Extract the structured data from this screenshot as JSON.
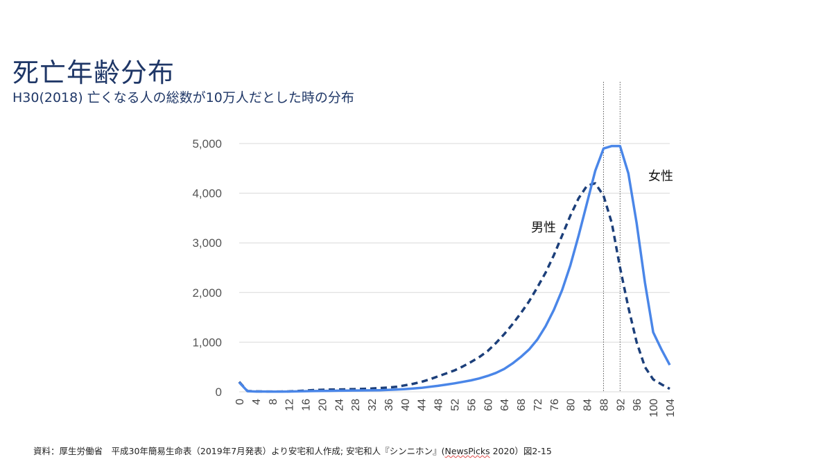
{
  "title": "死亡年齢分布",
  "subtitle": "H30(2018) 亡くなる人の総数が10万人だとした時の分布",
  "footer": {
    "prefix": "資料：厚生労働省　平成30年簡易生命表（2019年7月発表）より安宅和人作成; 安宅和人『シンニホン』(",
    "publisher": "NewsPicks",
    "suffix": " 2020）図2-15"
  },
  "colors": {
    "female": "#4a86e8",
    "male": "#1c3f7a",
    "grid": "#d9d9d9",
    "title": "#1f3767"
  },
  "chart_data": {
    "type": "line",
    "x": [
      0,
      2,
      4,
      6,
      8,
      10,
      12,
      14,
      16,
      18,
      20,
      22,
      24,
      26,
      28,
      30,
      32,
      34,
      36,
      38,
      40,
      42,
      44,
      46,
      48,
      50,
      52,
      54,
      56,
      58,
      60,
      62,
      64,
      66,
      68,
      70,
      72,
      74,
      76,
      78,
      80,
      82,
      84,
      86,
      88,
      90,
      92,
      94,
      96,
      98,
      100,
      102,
      104
    ],
    "x_tick_labels": [
      "0",
      "4",
      "8",
      "12",
      "16",
      "20",
      "24",
      "28",
      "32",
      "36",
      "40",
      "44",
      "48",
      "52",
      "56",
      "60",
      "64",
      "68",
      "72",
      "76",
      "80",
      "84",
      "88",
      "92",
      "96",
      "100",
      "104"
    ],
    "y_tick_labels": [
      "0",
      "1,000",
      "2,000",
      "3,000",
      "4,000",
      "5,000"
    ],
    "ylim": [
      0,
      5000
    ],
    "xlim": [
      0,
      104
    ],
    "grid": true,
    "reference_lines_x": [
      88,
      92
    ],
    "series": [
      {
        "name": "男性",
        "style": "dashed",
        "color": "#1c3f7a",
        "values": [
          200,
          15,
          8,
          6,
          5,
          6,
          8,
          15,
          25,
          35,
          40,
          45,
          48,
          50,
          55,
          60,
          65,
          75,
          85,
          100,
          130,
          160,
          200,
          250,
          310,
          370,
          430,
          510,
          600,
          700,
          820,
          980,
          1160,
          1360,
          1580,
          1820,
          2100,
          2400,
          2750,
          3150,
          3550,
          3900,
          4150,
          4200,
          3950,
          3400,
          2500,
          1700,
          1000,
          500,
          250,
          150,
          60
        ]
      },
      {
        "name": "女性",
        "style": "solid",
        "color": "#4a86e8",
        "values": [
          190,
          12,
          6,
          5,
          4,
          4,
          5,
          8,
          12,
          15,
          18,
          20,
          22,
          24,
          26,
          28,
          30,
          32,
          38,
          45,
          55,
          65,
          80,
          100,
          120,
          145,
          170,
          200,
          230,
          270,
          320,
          380,
          460,
          570,
          700,
          850,
          1050,
          1320,
          1650,
          2050,
          2550,
          3150,
          3800,
          4450,
          4900,
          4950,
          4950,
          4400,
          3400,
          2200,
          1200,
          850,
          540
        ]
      }
    ]
  }
}
